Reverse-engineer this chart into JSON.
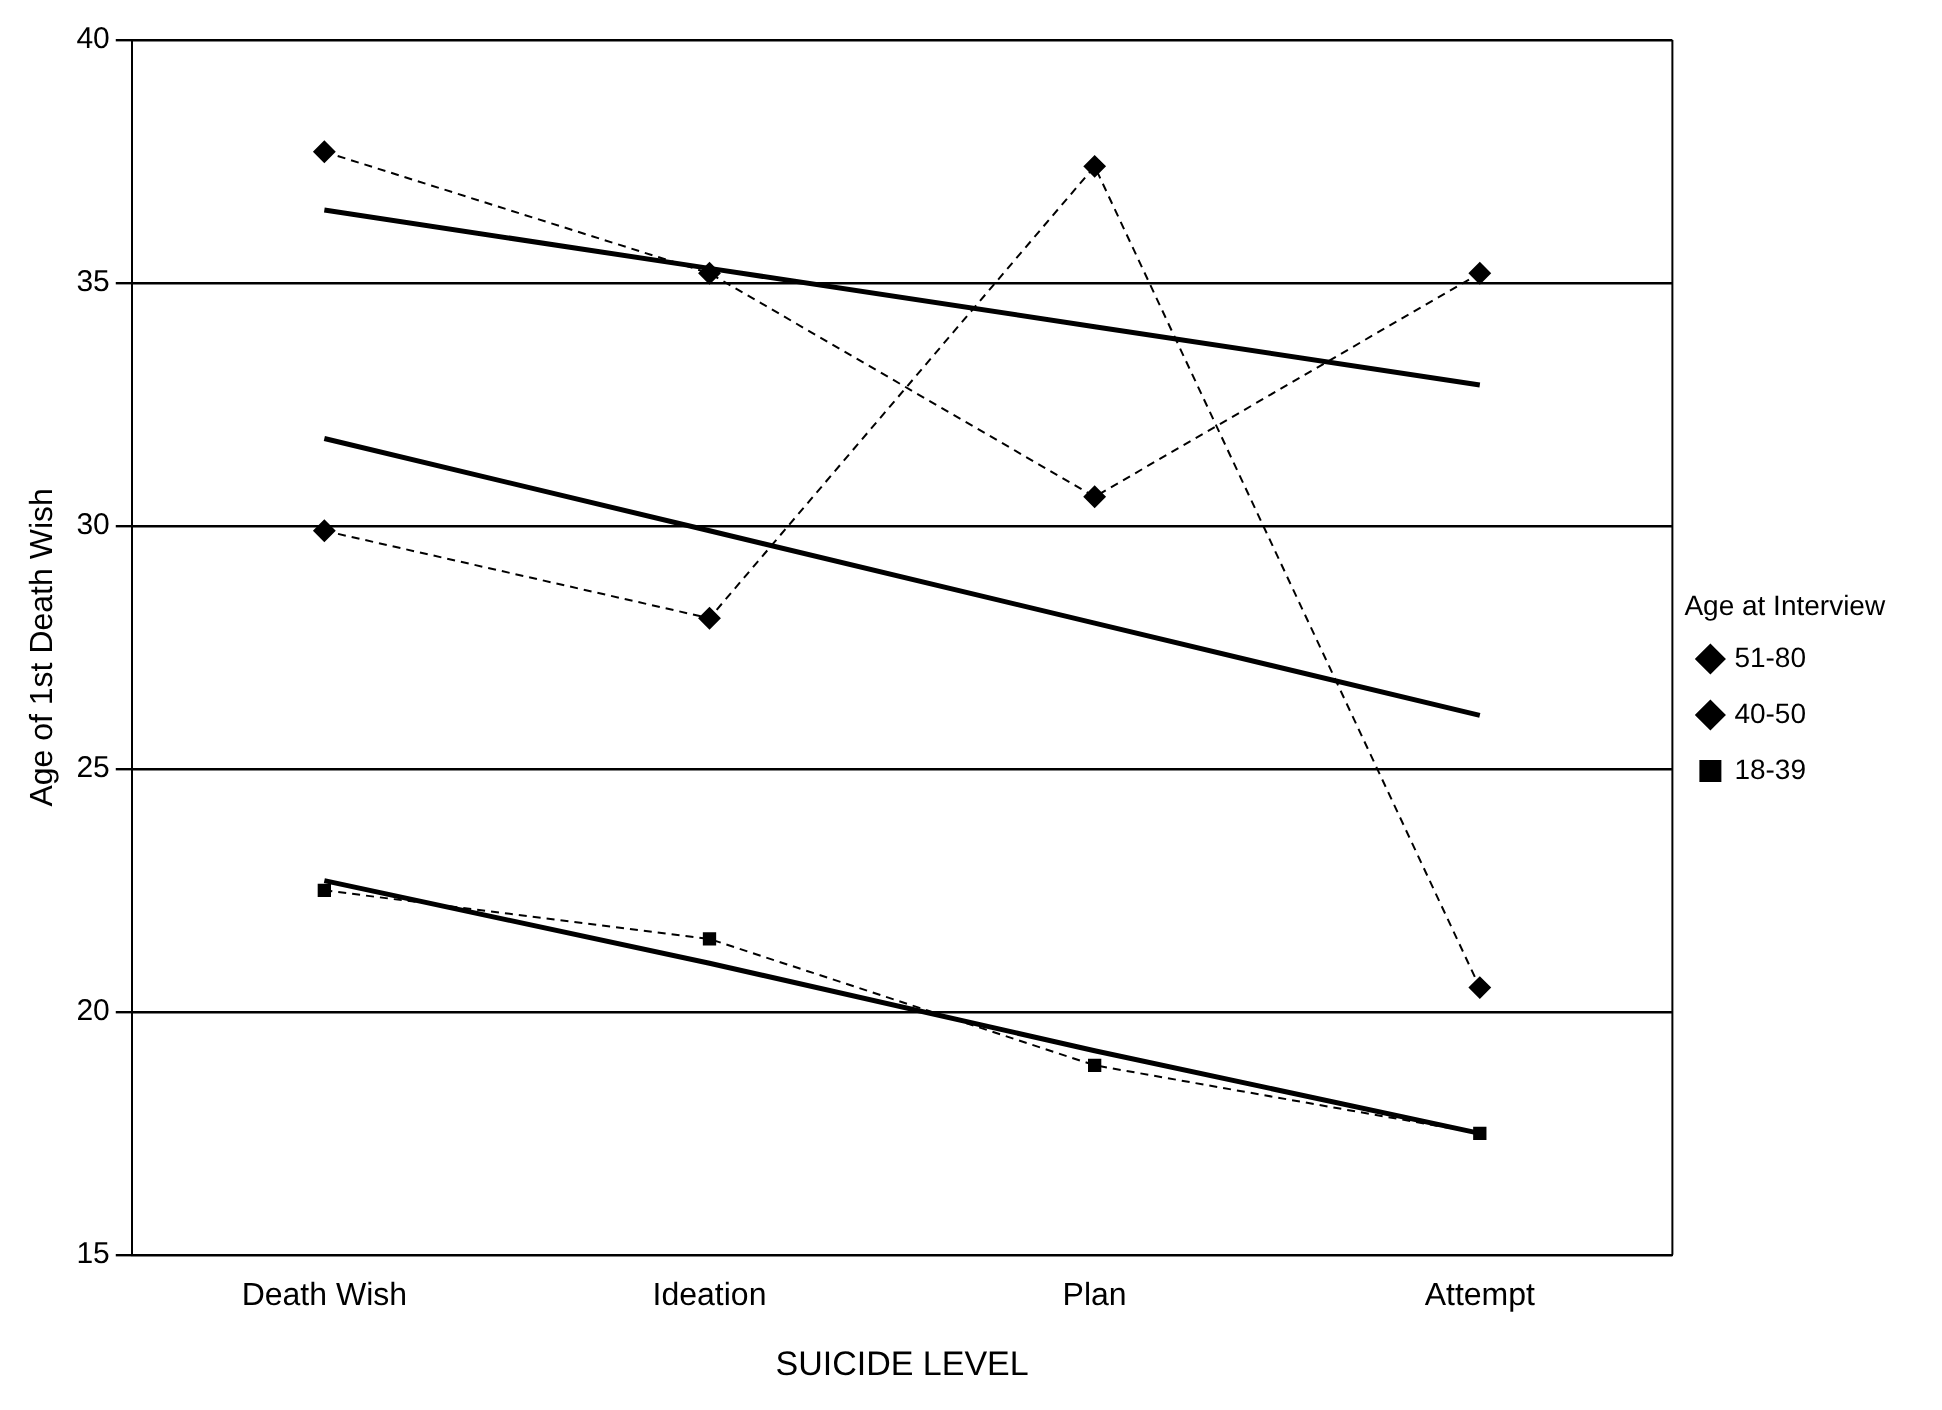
{
  "chart_data": {
    "type": "line",
    "xlabel": "SUICIDE LEVEL",
    "ylabel": "Age of 1st Death Wish",
    "legend_title": "Age at Interview",
    "categories": [
      "Death Wish",
      "Ideation",
      "Plan",
      "Attempt"
    ],
    "series": [
      {
        "name": "51-80",
        "color": "#000000",
        "marker": "diamond",
        "line_style": "dashed",
        "values": [
          37.7,
          35.2,
          30.6,
          35.2
        ]
      },
      {
        "name": "40-50",
        "color": "#000000",
        "marker": "diamond",
        "line_style": "dashed",
        "values": [
          29.9,
          28.1,
          37.4,
          20.5
        ]
      },
      {
        "name": "18-39",
        "color": "#000000",
        "marker": "square",
        "line_style": "dashed",
        "values": [
          22.5,
          21.5,
          18.9,
          17.5
        ]
      },
      {
        "color": "#000000",
        "marker": "none",
        "line_style": "solid",
        "values": [
          36.5,
          35.3,
          34.1,
          32.9
        ]
      },
      {
        "color": "#000000",
        "marker": "none",
        "line_style": "solid",
        "values": [
          31.8,
          29.9,
          28.0,
          26.1
        ]
      },
      {
        "color": "#000000",
        "marker": "none",
        "line_style": "solid",
        "values": [
          22.7,
          21.0,
          19.2,
          17.5
        ]
      }
    ],
    "ylim": [
      15,
      40
    ],
    "yticks": [
      15,
      20,
      25,
      30,
      35,
      40
    ],
    "grid": "y",
    "legend": "right"
  }
}
